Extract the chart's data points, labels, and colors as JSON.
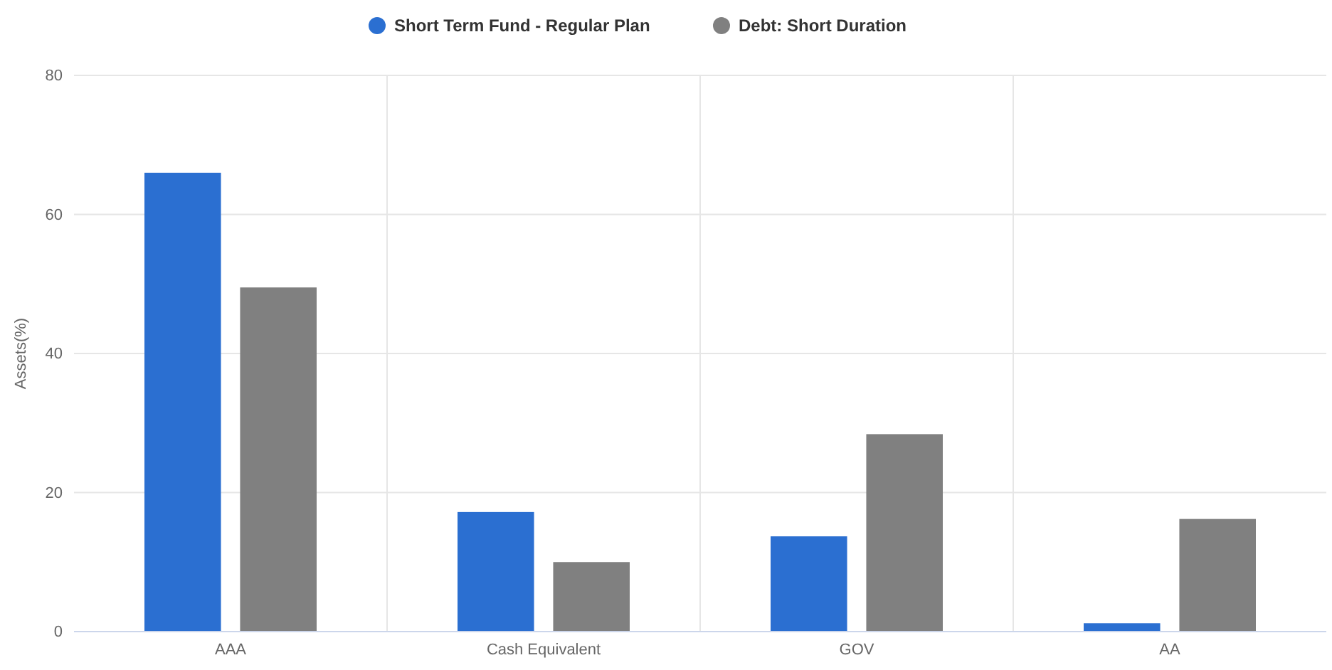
{
  "chart_data": {
    "type": "bar",
    "ylabel": "Assets(%)",
    "categories": [
      "AAA",
      "Cash Equivalent",
      "GOV",
      "AA"
    ],
    "series": [
      {
        "name": "Short Term Fund - Regular Plan",
        "color": "#2b6fd1",
        "values": [
          66,
          17.2,
          13.7,
          1.2
        ]
      },
      {
        "name": "Debt: Short Duration",
        "color": "#808080",
        "values": [
          49.5,
          10,
          28.4,
          16.2
        ]
      }
    ],
    "ylim": [
      0,
      80
    ],
    "yticks": [
      0,
      20,
      40,
      60,
      80
    ],
    "grid": true,
    "legend": "top"
  }
}
